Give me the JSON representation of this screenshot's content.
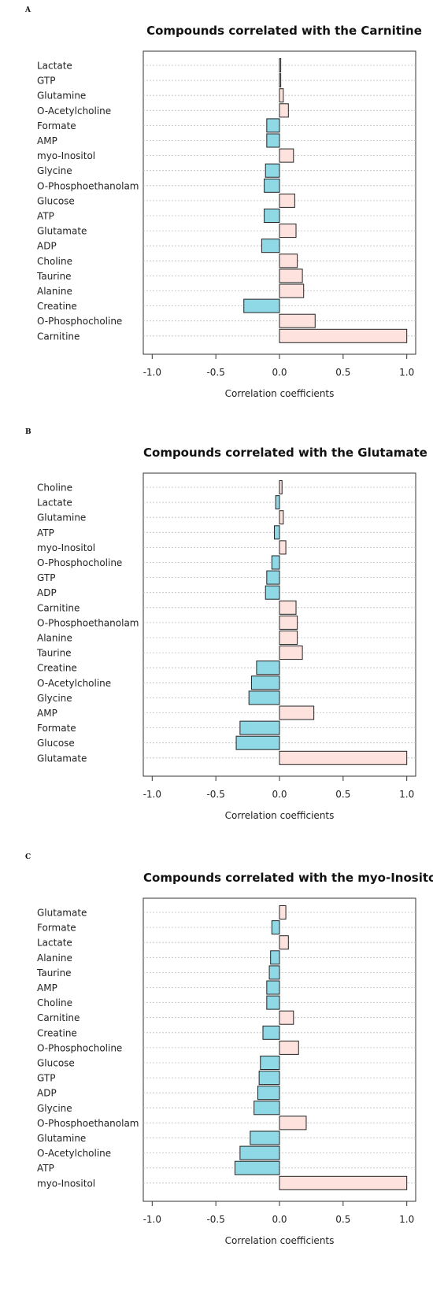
{
  "chart_data": [
    {
      "type": "bar",
      "orientation": "horizontal",
      "panel_label": "A",
      "title": "Compounds correlated with the Carnitine",
      "xlabel": "Correlation coefficients",
      "xlim": [
        -1.07,
        1.07
      ],
      "xticks": [
        -1.0,
        -0.5,
        0.0,
        0.5,
        1.0
      ],
      "xtick_labels": [
        "-1.0",
        "-0.5",
        "0.0",
        "0.5",
        "1.0"
      ],
      "grid": "horizontal dotted",
      "positive_color": "#fde2dd",
      "negative_color": "#8fd8e6",
      "categories": [
        "Lactate",
        "GTP",
        "Glutamine",
        "O-Acetylcholine",
        "Formate",
        "AMP",
        "myo-Inositol",
        "Glycine",
        "O-Phosphoethanolam",
        "Glucose",
        "ATP",
        "Glutamate",
        "ADP",
        "Choline",
        "Taurine",
        "Alanine",
        "Creatine",
        "O-Phosphocholine",
        "Carnitine"
      ],
      "values": [
        0.01,
        0.01,
        0.03,
        0.07,
        -0.1,
        -0.1,
        0.11,
        -0.11,
        -0.12,
        0.12,
        -0.12,
        0.13,
        -0.14,
        0.14,
        0.18,
        0.19,
        -0.28,
        0.28,
        1.0
      ]
    },
    {
      "type": "bar",
      "orientation": "horizontal",
      "panel_label": "B",
      "title": "Compounds correlated with the Glutamate",
      "xlabel": "Correlation coefficients",
      "xlim": [
        -1.07,
        1.07
      ],
      "xticks": [
        -1.0,
        -0.5,
        0.0,
        0.5,
        1.0
      ],
      "xtick_labels": [
        "-1.0",
        "-0.5",
        "0.0",
        "0.5",
        "1.0"
      ],
      "grid": "horizontal dotted",
      "positive_color": "#fde2dd",
      "negative_color": "#8fd8e6",
      "categories": [
        "Choline",
        "Lactate",
        "Glutamine",
        "ATP",
        "myo-Inositol",
        "O-Phosphocholine",
        "GTP",
        "ADP",
        "Carnitine",
        "O-Phosphoethanolam",
        "Alanine",
        "Taurine",
        "Creatine",
        "O-Acetylcholine",
        "Glycine",
        "AMP",
        "Formate",
        "Glucose",
        "Glutamate"
      ],
      "values": [
        0.02,
        -0.03,
        0.03,
        -0.04,
        0.05,
        -0.06,
        -0.1,
        -0.11,
        0.13,
        0.14,
        0.14,
        0.18,
        -0.18,
        -0.22,
        -0.24,
        0.27,
        -0.31,
        -0.34,
        1.0
      ]
    },
    {
      "type": "bar",
      "orientation": "horizontal",
      "panel_label": "C",
      "title": "Compounds correlated with the myo-Inositol",
      "xlabel": "Correlation coefficients",
      "xlim": [
        -1.07,
        1.07
      ],
      "xticks": [
        -1.0,
        -0.5,
        0.0,
        0.5,
        1.0
      ],
      "xtick_labels": [
        "-1.0",
        "-0.5",
        "0.0",
        "0.5",
        "1.0"
      ],
      "grid": "horizontal dotted",
      "positive_color": "#fde2dd",
      "negative_color": "#8fd8e6",
      "categories": [
        "Glutamate",
        "Formate",
        "Lactate",
        "Alanine",
        "Taurine",
        "AMP",
        "Choline",
        "Carnitine",
        "Creatine",
        "O-Phosphocholine",
        "Glucose",
        "GTP",
        "ADP",
        "Glycine",
        "O-Phosphoethanolam",
        "Glutamine",
        "O-Acetylcholine",
        "ATP",
        "myo-Inositol"
      ],
      "values": [
        0.05,
        -0.06,
        0.07,
        -0.07,
        -0.08,
        -0.1,
        -0.1,
        0.11,
        -0.13,
        0.15,
        -0.15,
        -0.16,
        -0.17,
        -0.2,
        0.21,
        -0.23,
        -0.31,
        -0.35,
        1.0
      ]
    }
  ]
}
